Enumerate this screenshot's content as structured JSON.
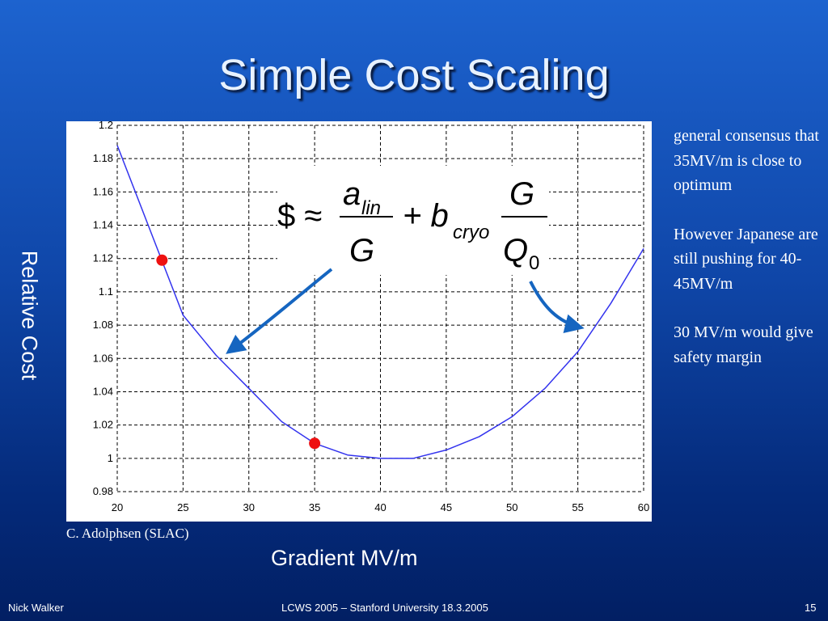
{
  "slide": {
    "title": "Simple Cost Scaling",
    "side_text": [
      "general consensus that 35MV/m is close to optimum",
      "However Japanese are still pushing for 40-45MV/m",
      "30 MV/m would give safety margin"
    ],
    "credit": "C. Adolphsen (SLAC)",
    "formula": {
      "lhs": "$ ≈",
      "a": "a",
      "a_sub": "lin",
      "den1": "G",
      "plus_b": "+ b",
      "b_sub": "cryo",
      "num2": "G",
      "q": "Q",
      "q_sub": "0"
    },
    "footer": {
      "author": "Nick Walker",
      "event": "LCWS 2005 – Stanford University 18.3.2005",
      "page": "15"
    }
  },
  "chart_data": {
    "type": "line",
    "xlabel": "Gradient MV/m",
    "ylabel": "Relative Cost",
    "xlim": [
      20,
      60
    ],
    "xticks": [
      20,
      25,
      30,
      35,
      40,
      45,
      50,
      55,
      60
    ],
    "ylim": [
      0.98,
      1.2
    ],
    "yticks": [
      0.98,
      1,
      1.02,
      1.04,
      1.06,
      1.08,
      1.1,
      1.12,
      1.14,
      1.16,
      1.18,
      1.2
    ],
    "grid": true,
    "series": [
      {
        "color": "#3333ee",
        "x": [
          20,
          22.5,
          25,
          27.5,
          30,
          32.5,
          35,
          37.5,
          40,
          42.5,
          45,
          47.5,
          50,
          52.5,
          55,
          57.5,
          60
        ],
        "values": [
          1.188,
          1.137,
          1.086,
          1.062,
          1.042,
          1.022,
          1.009,
          1.002,
          1.0,
          1.0,
          1.005,
          1.013,
          1.025,
          1.042,
          1.064,
          1.093,
          1.126
        ]
      },
      {
        "color": "#ee1111",
        "marker": "dot",
        "x": [
          23.4,
          35
        ],
        "values": [
          1.119,
          1.009
        ]
      }
    ]
  }
}
